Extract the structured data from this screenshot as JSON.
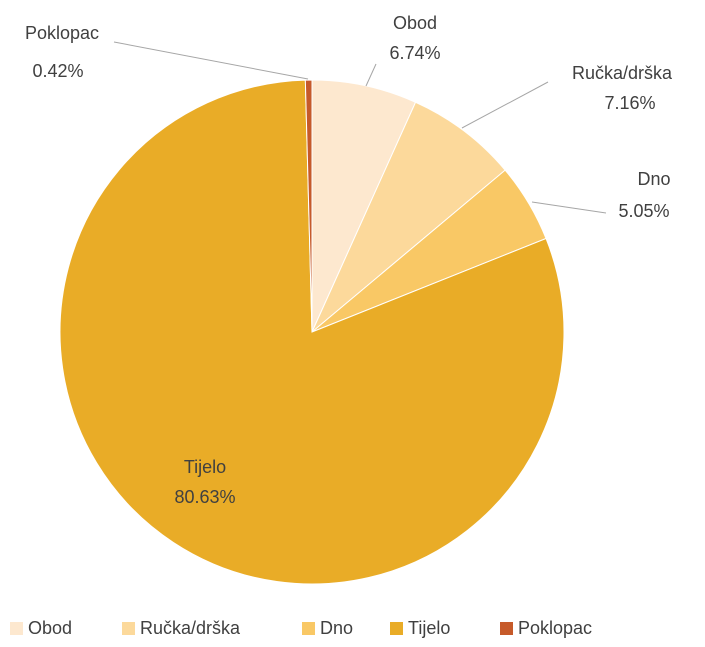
{
  "chart_data": {
    "type": "pie",
    "categories": [
      "Obod",
      "Ručka/drška",
      "Dno",
      "Tijelo",
      "Poklopac"
    ],
    "values": [
      6.74,
      7.16,
      5.05,
      80.63,
      0.42
    ],
    "value_labels": [
      "6.74%",
      "7.16%",
      "5.05%",
      "80.63%",
      "0.42%"
    ],
    "colors": [
      "#fde8cf",
      "#fcd99b",
      "#f9c865",
      "#e9ac27",
      "#c65a2a"
    ],
    "legend": "bottom"
  }
}
